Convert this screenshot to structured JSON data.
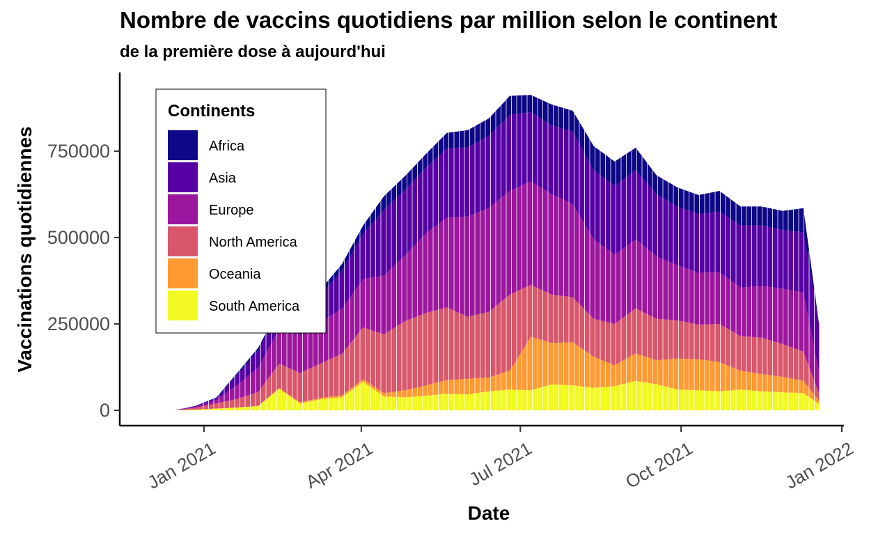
{
  "chart_data": {
    "type": "area",
    "stacked": true,
    "title": "Nombre de vaccins quotidiens par million selon le continent",
    "subtitle": "de la première dose à aujourd'hui",
    "xlabel": "Date",
    "ylabel": "Vaccinations quotidiennes",
    "x_ticks": [
      "Jan 2021",
      "Apr 2021",
      "Jul 2021",
      "Oct 2021",
      "Jan 2022"
    ],
    "y_ticks": [
      "0",
      "250000",
      "500000",
      "750000"
    ],
    "ylim": [
      0,
      930000
    ],
    "legend": {
      "title": "Continents",
      "position": "top-left"
    },
    "x": [
      "2020-12-15",
      "2020-12-27",
      "2021-01-08",
      "2021-01-20",
      "2021-02-01",
      "2021-02-13",
      "2021-02-25",
      "2021-03-09",
      "2021-03-21",
      "2021-04-02",
      "2021-04-14",
      "2021-04-26",
      "2021-05-08",
      "2021-05-20",
      "2021-06-01",
      "2021-06-13",
      "2021-06-25",
      "2021-07-07",
      "2021-07-19",
      "2021-07-31",
      "2021-08-12",
      "2021-08-24",
      "2021-09-05",
      "2021-09-17",
      "2021-09-29",
      "2021-10-11",
      "2021-10-23",
      "2021-11-04",
      "2021-11-16",
      "2021-11-28",
      "2021-12-10",
      "2021-12-19"
    ],
    "series": [
      {
        "name": "South America",
        "color": "#F0F921",
        "values": [
          0,
          2000,
          5000,
          8000,
          12000,
          62000,
          20000,
          32000,
          38000,
          82000,
          40000,
          38000,
          42000,
          48000,
          46000,
          55000,
          60000,
          58000,
          75000,
          72000,
          65000,
          70000,
          85000,
          75000,
          60000,
          58000,
          55000,
          60000,
          55000,
          52000,
          50000,
          18000
        ]
      },
      {
        "name": "Oceania",
        "color": "#FD9A32",
        "values": [
          0,
          0,
          0,
          0,
          1000,
          3000,
          3000,
          4000,
          6000,
          8000,
          10000,
          20000,
          30000,
          40000,
          45000,
          40000,
          55000,
          155000,
          120000,
          125000,
          90000,
          60000,
          80000,
          70000,
          90000,
          90000,
          85000,
          55000,
          50000,
          45000,
          35000,
          10000
        ]
      },
      {
        "name": "North America",
        "color": "#D8576B",
        "values": [
          0,
          5000,
          15000,
          25000,
          40000,
          70000,
          85000,
          100000,
          120000,
          150000,
          170000,
          200000,
          210000,
          210000,
          180000,
          190000,
          220000,
          150000,
          140000,
          130000,
          110000,
          120000,
          130000,
          120000,
          110000,
          100000,
          110000,
          100000,
          105000,
          95000,
          85000,
          20000
        ]
      },
      {
        "name": "Europe",
        "color": "#9C179E",
        "values": [
          0,
          3000,
          10000,
          40000,
          70000,
          100000,
          110000,
          120000,
          130000,
          140000,
          170000,
          190000,
          230000,
          260000,
          290000,
          300000,
          300000,
          300000,
          290000,
          270000,
          230000,
          200000,
          200000,
          180000,
          160000,
          150000,
          150000,
          140000,
          150000,
          160000,
          170000,
          60000
        ]
      },
      {
        "name": "Asia",
        "color": "#5702A4",
        "values": [
          0,
          2000,
          5000,
          30000,
          50000,
          50000,
          60000,
          80000,
          110000,
          130000,
          190000,
          190000,
          190000,
          200000,
          200000,
          210000,
          220000,
          200000,
          200000,
          210000,
          200000,
          200000,
          200000,
          180000,
          170000,
          170000,
          175000,
          180000,
          175000,
          170000,
          175000,
          140000
        ]
      },
      {
        "name": "Africa",
        "color": "#0D0887",
        "values": [
          0,
          1000,
          2000,
          5000,
          8000,
          10000,
          10000,
          15000,
          20000,
          25000,
          40000,
          40000,
          40000,
          45000,
          50000,
          50000,
          55000,
          50000,
          60000,
          60000,
          70000,
          70000,
          65000,
          55000,
          55000,
          55000,
          60000,
          55000,
          55000,
          55000,
          70000,
          0
        ]
      }
    ]
  }
}
